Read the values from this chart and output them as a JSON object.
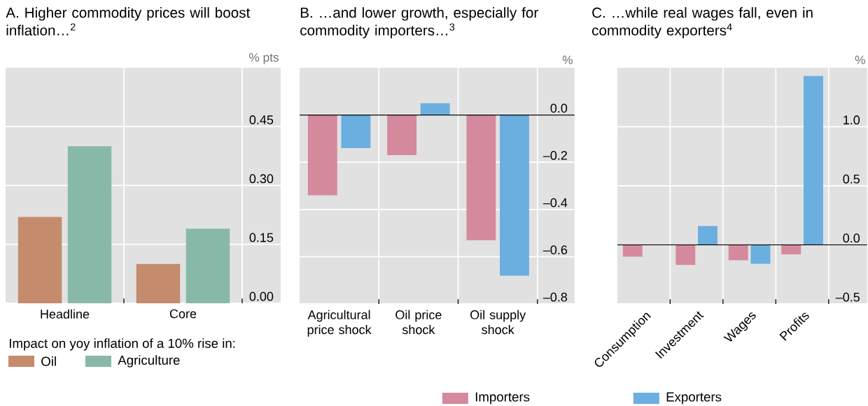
{
  "chart_data": [
    {
      "type": "bar",
      "title": "A. Higher commodity prices will boost inflation…$^{2}$",
      "ylabel": "% pts",
      "categories": [
        "Headline",
        "Core"
      ],
      "series": [
        {
          "name": "Oil",
          "color": "#c48b6c",
          "values": [
            0.22,
            0.1
          ]
        },
        {
          "name": "Agriculture",
          "color": "#88b9a8",
          "values": [
            0.4,
            0.19
          ]
        }
      ],
      "ylim": [
        0,
        0.6
      ],
      "yticks": [
        {
          "value": 0,
          "label": "0.00"
        },
        {
          "value": 0.15,
          "label": "0.15"
        },
        {
          "value": 0.3,
          "label": "0.30"
        },
        {
          "value": 0.45,
          "label": "0.45"
        }
      ],
      "grid": true,
      "legend": "bottom",
      "legend_title": "Impact on yoy inflation of a 10% rise in:"
    },
    {
      "type": "bar",
      "title": "B. …and lower growth, especially for commodity importers…$^{3}$",
      "ylabel": "%",
      "categories": [
        "Agricultural price shock",
        "Oil price shock",
        "Oil supply shock"
      ],
      "series": [
        {
          "name": "Importers",
          "color": "#d48a9c",
          "values": [
            -0.34,
            -0.17,
            -0.53
          ]
        },
        {
          "name": "Exporters",
          "color": "#6aafe0",
          "values": [
            -0.14,
            0.05,
            -0.68
          ]
        }
      ],
      "ylim": [
        -0.8,
        0.2
      ],
      "yticks": [
        {
          "value": -0.8,
          "label": "–0.8"
        },
        {
          "value": -0.6,
          "label": "–0.6"
        },
        {
          "value": -0.4,
          "label": "–0.4"
        },
        {
          "value": -0.2,
          "label": "–0.2"
        },
        {
          "value": 0,
          "label": "0.0"
        }
      ],
      "grid": true,
      "legend": "bottom"
    },
    {
      "type": "bar",
      "title": "C. …while real wages fall, even in commodity exporters$^{4}$",
      "ylabel": "%",
      "categories": [
        "Consumption",
        "Investment",
        "Wages",
        "Profits"
      ],
      "series": [
        {
          "color": "#d48a9c",
          "values": [
            -0.1,
            -0.17,
            -0.13,
            -0.08
          ]
        },
        {
          "color": "#6aafe0",
          "values": [
            null,
            0.16,
            -0.16,
            1.43
          ]
        }
      ],
      "ylim": [
        -0.5,
        1.5
      ],
      "yticks": [
        {
          "value": -0.5,
          "label": "–0.5"
        },
        {
          "value": 0,
          "label": "0.0"
        },
        {
          "value": 0.5,
          "label": "0.5"
        },
        {
          "value": 1,
          "label": "1.0"
        }
      ],
      "grid": true
    }
  ]
}
